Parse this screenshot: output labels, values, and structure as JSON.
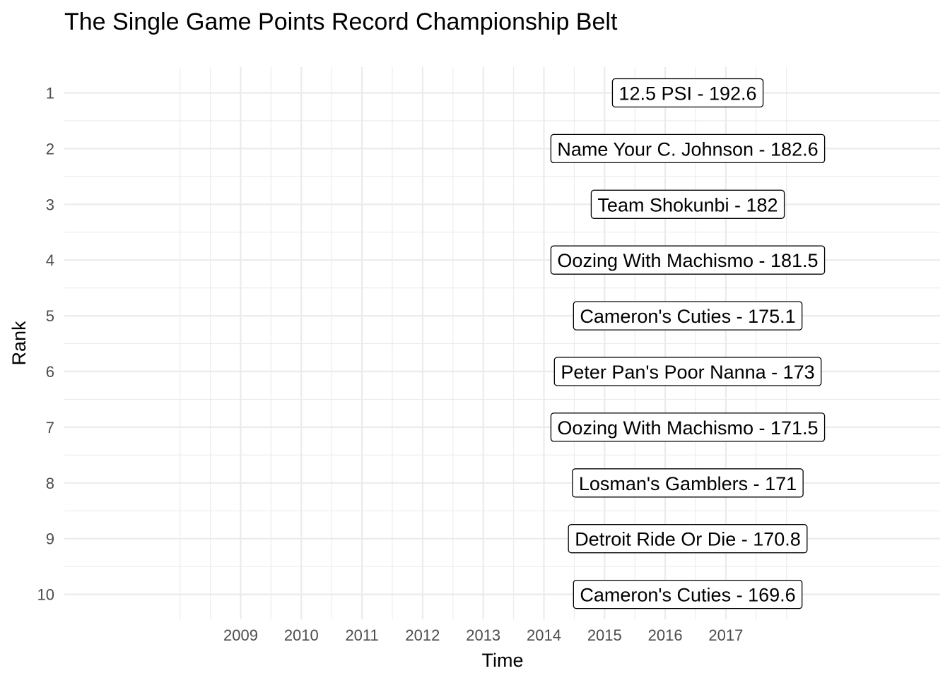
{
  "chart_data": {
    "type": "label",
    "title": "The Single Game Points Record Championship Belt",
    "xlabel": "Time",
    "ylabel": "Rank",
    "x_ticks": [
      "2009",
      "2010",
      "2011",
      "2012",
      "2013",
      "2014",
      "2015",
      "2016",
      "2017"
    ],
    "y_ticks": [
      "1",
      "2",
      "3",
      "4",
      "5",
      "6",
      "7",
      "8",
      "9",
      "10"
    ],
    "grid": true,
    "records": [
      {
        "rank": 1,
        "team": "12.5 PSI",
        "points": 192.6,
        "label": "12.5 PSI - 192.6"
      },
      {
        "rank": 2,
        "team": "Name Your C. Johnson",
        "points": 182.6,
        "label": "Name Your C. Johnson - 182.6"
      },
      {
        "rank": 3,
        "team": "Team Shokunbi",
        "points": 182,
        "label": "Team Shokunbi - 182"
      },
      {
        "rank": 4,
        "team": "Oozing With Machismo",
        "points": 181.5,
        "label": "Oozing With Machismo - 181.5"
      },
      {
        "rank": 5,
        "team": "Cameron's Cuties",
        "points": 175.1,
        "label": "Cameron's Cuties - 175.1"
      },
      {
        "rank": 6,
        "team": "Peter Pan's Poor Nanna",
        "points": 173,
        "label": "Peter Pan's Poor Nanna - 173"
      },
      {
        "rank": 7,
        "team": "Oozing With Machismo",
        "points": 171.5,
        "label": "Oozing With Machismo - 171.5"
      },
      {
        "rank": 8,
        "team": "Losman's Gamblers",
        "points": 171,
        "label": "Losman's Gamblers - 171"
      },
      {
        "rank": 9,
        "team": "Detroit Ride Or Die",
        "points": 170.8,
        "label": "Detroit Ride Or Die - 170.8"
      },
      {
        "rank": 10,
        "team": "Cameron's Cuties",
        "points": 169.6,
        "label": "Cameron's Cuties - 169.6"
      }
    ]
  }
}
